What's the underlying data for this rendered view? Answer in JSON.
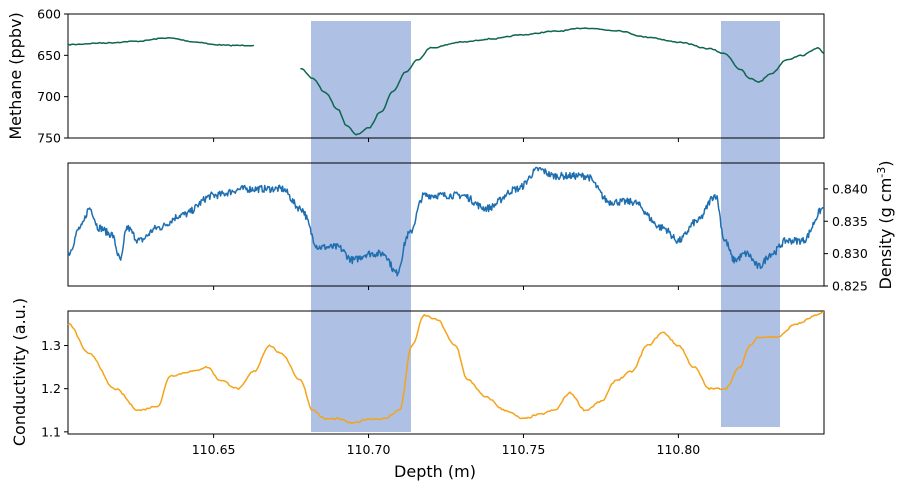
{
  "chart_data": [
    {
      "type": "line",
      "ylabel": "Methane (ppbv)",
      "y_inverted": true,
      "ylim": [
        600,
        750
      ],
      "yticks": [
        "600",
        "650",
        "700",
        "750"
      ],
      "x_shared": true,
      "xlim": [
        110.603,
        110.847
      ],
      "series": [
        {
          "color": "#0e6650",
          "x": [
            110.603,
            110.615,
            110.625,
            110.635,
            110.645,
            110.65,
            110.655,
            110.663
          ],
          "values": [
            637,
            635,
            633,
            629,
            634,
            637,
            638,
            638
          ]
        },
        {
          "color": "#0e6650",
          "x": [
            110.678,
            110.682,
            110.686,
            110.69,
            110.693,
            110.696,
            110.7,
            110.704,
            110.708,
            110.712,
            110.716,
            110.72,
            110.73,
            110.74,
            110.75,
            110.76,
            110.77,
            110.78,
            110.79,
            110.8,
            110.81,
            110.815,
            110.82,
            110.823,
            110.826,
            110.83,
            110.835,
            110.84,
            110.845,
            110.847
          ],
          "values": [
            666,
            678,
            695,
            715,
            735,
            746,
            738,
            718,
            693,
            670,
            655,
            641,
            634,
            630,
            625,
            621,
            617,
            620,
            628,
            634,
            642,
            648,
            667,
            678,
            682,
            672,
            655,
            650,
            641,
            648
          ]
        }
      ]
    },
    {
      "type": "line",
      "ylabel": "Density (g cm⁻³)",
      "ylabel_base": "Density (g cm",
      "ylabel_sup": "-3",
      "ylabel_close": ")",
      "y_axis_side": "right",
      "ylim": [
        0.825,
        0.844
      ],
      "yticks": [
        "0.825",
        "0.830",
        "0.835",
        "0.840"
      ],
      "series": [
        {
          "color": "#1f6fb0",
          "x": [
            110.603,
            110.607,
            110.61,
            110.613,
            110.617,
            110.62,
            110.622,
            110.626,
            110.632,
            110.64,
            110.65,
            110.66,
            110.672,
            110.678,
            110.684,
            110.69,
            110.695,
            110.7,
            110.705,
            110.709,
            110.713,
            110.718,
            110.73,
            110.738,
            110.748,
            110.755,
            110.76,
            110.77,
            110.778,
            110.785,
            110.795,
            110.8,
            110.806,
            110.812,
            110.815,
            110.818,
            110.822,
            110.826,
            110.83,
            110.835,
            110.84,
            110.847
          ],
          "values": [
            0.83,
            0.834,
            0.837,
            0.834,
            0.833,
            0.829,
            0.834,
            0.832,
            0.834,
            0.836,
            0.839,
            0.84,
            0.84,
            0.837,
            0.831,
            0.831,
            0.829,
            0.83,
            0.83,
            0.827,
            0.833,
            0.839,
            0.839,
            0.837,
            0.84,
            0.843,
            0.842,
            0.842,
            0.838,
            0.838,
            0.834,
            0.832,
            0.835,
            0.839,
            0.832,
            0.829,
            0.83,
            0.828,
            0.83,
            0.832,
            0.832,
            0.837
          ]
        }
      ]
    },
    {
      "type": "line",
      "ylabel": "Conductivity (a.u.)",
      "xlabel": "Depth (m)",
      "ylim": [
        1.095,
        1.38
      ],
      "yticks": [
        "1.1",
        "1.2",
        "1.3"
      ],
      "xticks": [
        "110.65",
        "110.70",
        "110.75",
        "110.80"
      ],
      "series": [
        {
          "color": "#f5a31a",
          "x": [
            110.603,
            110.61,
            110.618,
            110.626,
            110.632,
            110.636,
            110.643,
            110.648,
            110.652,
            110.658,
            110.663,
            110.668,
            110.672,
            110.678,
            110.682,
            110.686,
            110.69,
            110.695,
            110.7,
            110.705,
            110.71,
            110.714,
            110.718,
            110.722,
            110.728,
            110.732,
            110.738,
            110.744,
            110.75,
            110.755,
            110.76,
            110.765,
            110.77,
            110.775,
            110.78,
            110.785,
            110.79,
            110.795,
            110.8,
            110.805,
            110.81,
            110.815,
            110.82,
            110.823,
            110.826,
            110.832,
            110.838,
            110.845,
            110.847
          ],
          "values": [
            1.35,
            1.28,
            1.2,
            1.15,
            1.16,
            1.23,
            1.24,
            1.25,
            1.22,
            1.2,
            1.24,
            1.3,
            1.28,
            1.22,
            1.15,
            1.13,
            1.13,
            1.12,
            1.13,
            1.13,
            1.15,
            1.3,
            1.37,
            1.36,
            1.3,
            1.22,
            1.18,
            1.15,
            1.13,
            1.14,
            1.15,
            1.19,
            1.15,
            1.17,
            1.22,
            1.24,
            1.3,
            1.33,
            1.3,
            1.25,
            1.2,
            1.2,
            1.25,
            1.3,
            1.32,
            1.32,
            1.35,
            1.37,
            1.38
          ]
        }
      ]
    }
  ],
  "shaded_regions": {
    "color": "#aec0e3",
    "spans": [
      [
        110.6805,
        110.7125
      ],
      [
        110.8147,
        110.8337
      ]
    ],
    "spans_alt": [
      [
        110.7125,
        110.7135
      ],
      [
        110.8337,
        110.8337
      ]
    ]
  }
}
